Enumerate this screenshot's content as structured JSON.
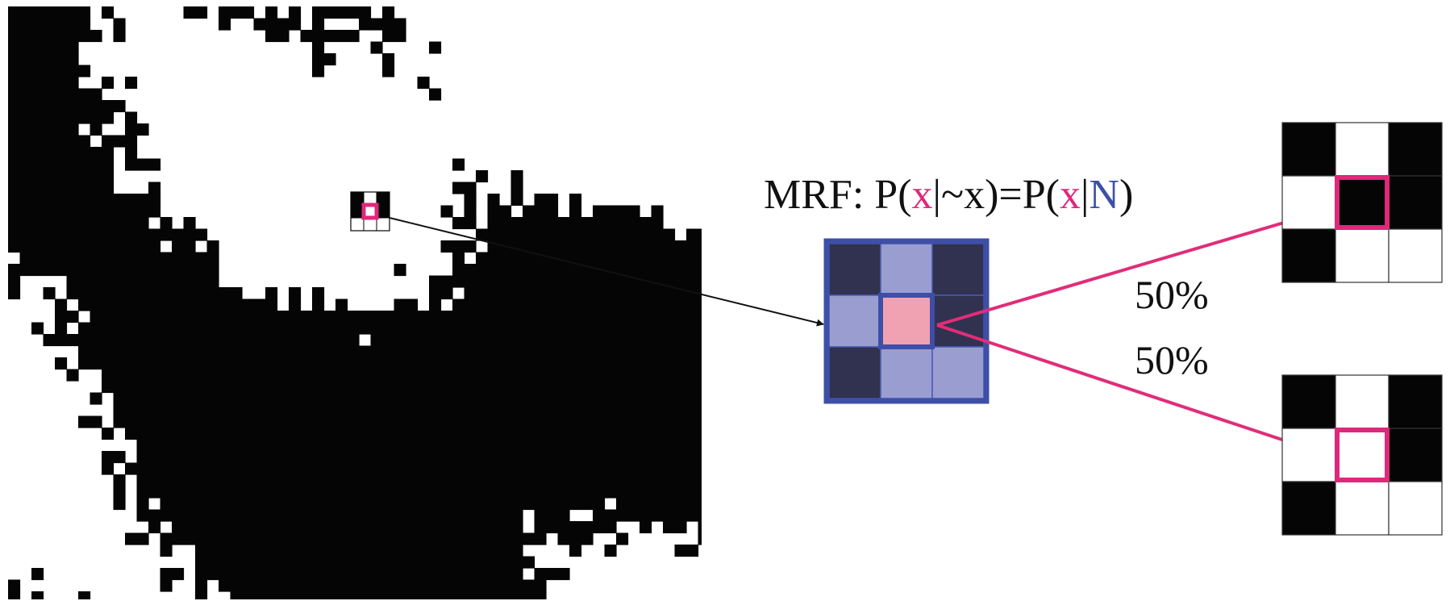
{
  "formula": {
    "prefix": "MRF: P(",
    "x1": "x",
    "mid1": "|~x)=P(",
    "x2": "x",
    "bar": "|",
    "N": "N",
    "end": ")"
  },
  "outcomes": [
    {
      "label": "50%",
      "center_state": "black"
    },
    {
      "label": "50%",
      "center_state": "white"
    }
  ],
  "colors": {
    "pixel_black": "#050505",
    "highlight_pink": "#e0287a",
    "neighbor_dark": "#30324f",
    "neighbor_light": "#9a9dd0",
    "center_fill": "#f0a2b2",
    "frame_blue": "#3e4fa8",
    "arrow_black": "#111111",
    "arrow_pink": "#e02d79"
  },
  "neighborhood": {
    "cells": [
      "dark",
      "light",
      "dark",
      "light",
      "center",
      "dark",
      "dark",
      "light",
      "light"
    ]
  },
  "outcome_patterns": [
    [
      "black",
      "white",
      "black",
      "white",
      "black",
      "black",
      "black",
      "white",
      "white"
    ],
    [
      "black",
      "white",
      "black",
      "white",
      "white",
      "black",
      "black",
      "white",
      "white"
    ]
  ]
}
